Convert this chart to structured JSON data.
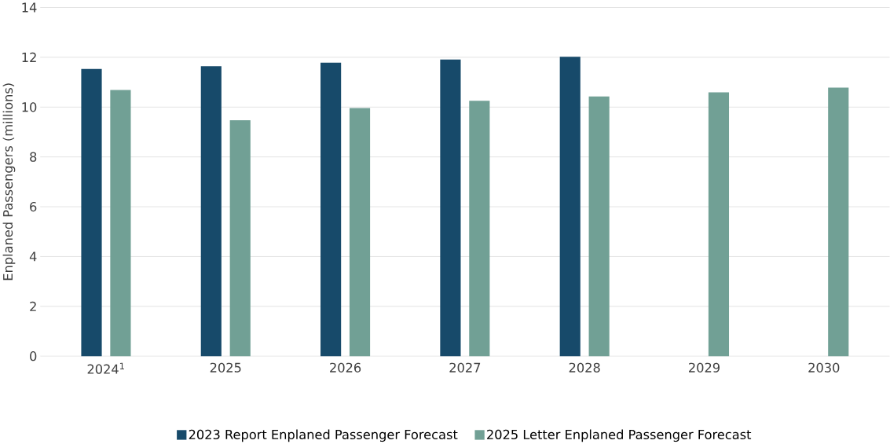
{
  "chart_data": {
    "type": "bar",
    "ylabel": "Enplaned Passengers (millions)",
    "categories": [
      "2024$^{1}$",
      "2025",
      "2026",
      "2027",
      "2028",
      "2029",
      "2030"
    ],
    "series": [
      {
        "name": "2023 Report Enplaned Passenger Forecast",
        "color": "#174a6a",
        "values": [
          11.53,
          11.64,
          11.78,
          11.91,
          12.02,
          null,
          null
        ]
      },
      {
        "name": "2025 Letter Enplaned Passenger Forecast",
        "color": "#71a095",
        "values": [
          10.69,
          9.47,
          9.96,
          10.25,
          10.43,
          10.59,
          10.78
        ]
      }
    ],
    "ylim": [
      0,
      14
    ],
    "yticks": [
      0,
      2,
      4,
      6,
      8,
      10,
      12,
      14
    ],
    "grid": "y",
    "legend": "bottom"
  }
}
